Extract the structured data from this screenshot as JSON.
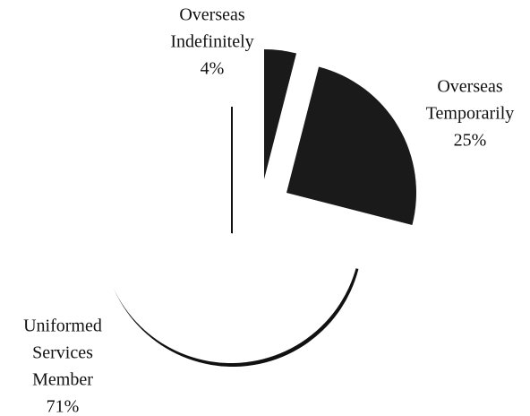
{
  "chart_data": {
    "type": "pie",
    "categories": [
      "Overseas Indefinitely",
      "Overseas Temporarily",
      "Uniformed Services Member"
    ],
    "values": [
      4,
      25,
      71
    ],
    "value_labels": [
      "4%",
      "25%",
      "71%"
    ],
    "colors": [
      "#1a1a1a",
      "#1a1a1a",
      "#ffffff"
    ]
  }
}
